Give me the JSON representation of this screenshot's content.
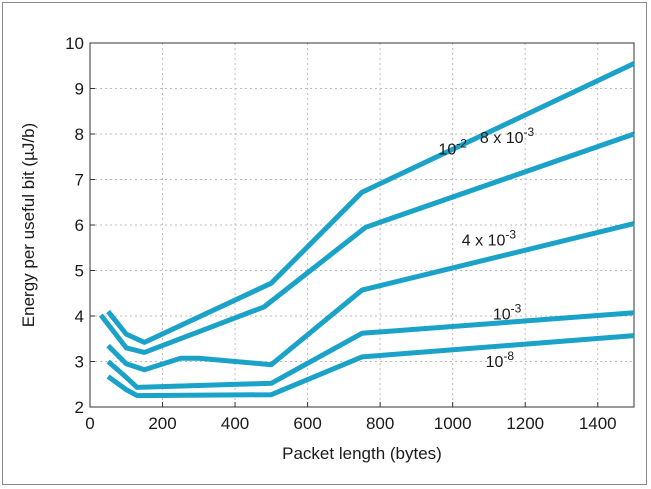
{
  "chart_data": {
    "type": "line",
    "title": "",
    "xlabel": "Packet length (bytes)",
    "ylabel": "Energy per useful bit (µJ/b)",
    "xlim": [
      0,
      1500
    ],
    "ylim": [
      2,
      10
    ],
    "xticks": [
      0,
      200,
      400,
      600,
      800,
      1000,
      1200,
      1400
    ],
    "yticks": [
      2,
      3,
      4,
      5,
      6,
      7,
      8,
      9,
      10
    ],
    "grid": true,
    "legend": "none",
    "color": "#1aa2c8",
    "series": [
      {
        "label_base": "10",
        "label_exp": "-2",
        "points": [
          [
            50,
            4.1
          ],
          [
            100,
            3.6
          ],
          [
            150,
            3.42
          ],
          [
            500,
            4.72
          ],
          [
            750,
            6.72
          ],
          [
            1500,
            9.55
          ]
        ]
      },
      {
        "label_base": "8 x 10",
        "label_exp": "-3",
        "points": [
          [
            30,
            4.02
          ],
          [
            100,
            3.3
          ],
          [
            150,
            3.2
          ],
          [
            480,
            4.2
          ],
          [
            760,
            5.95
          ],
          [
            1500,
            8.0
          ]
        ]
      },
      {
        "label_base": "4 x 10",
        "label_exp": "-3",
        "points": [
          [
            50,
            3.35
          ],
          [
            100,
            2.95
          ],
          [
            150,
            2.82
          ],
          [
            250,
            3.07
          ],
          [
            300,
            3.07
          ],
          [
            500,
            2.93
          ],
          [
            750,
            4.57
          ],
          [
            1500,
            6.03
          ]
        ]
      },
      {
        "label_base": "10",
        "label_exp": "-3",
        "points": [
          [
            50,
            3.0
          ],
          [
            100,
            2.65
          ],
          [
            130,
            2.43
          ],
          [
            500,
            2.52
          ],
          [
            750,
            3.62
          ],
          [
            1500,
            4.07
          ]
        ]
      },
      {
        "label_base": "10",
        "label_exp": "-8",
        "points": [
          [
            50,
            2.67
          ],
          [
            100,
            2.38
          ],
          [
            130,
            2.25
          ],
          [
            500,
            2.27
          ],
          [
            750,
            3.1
          ],
          [
            1500,
            3.57
          ]
        ]
      }
    ]
  }
}
